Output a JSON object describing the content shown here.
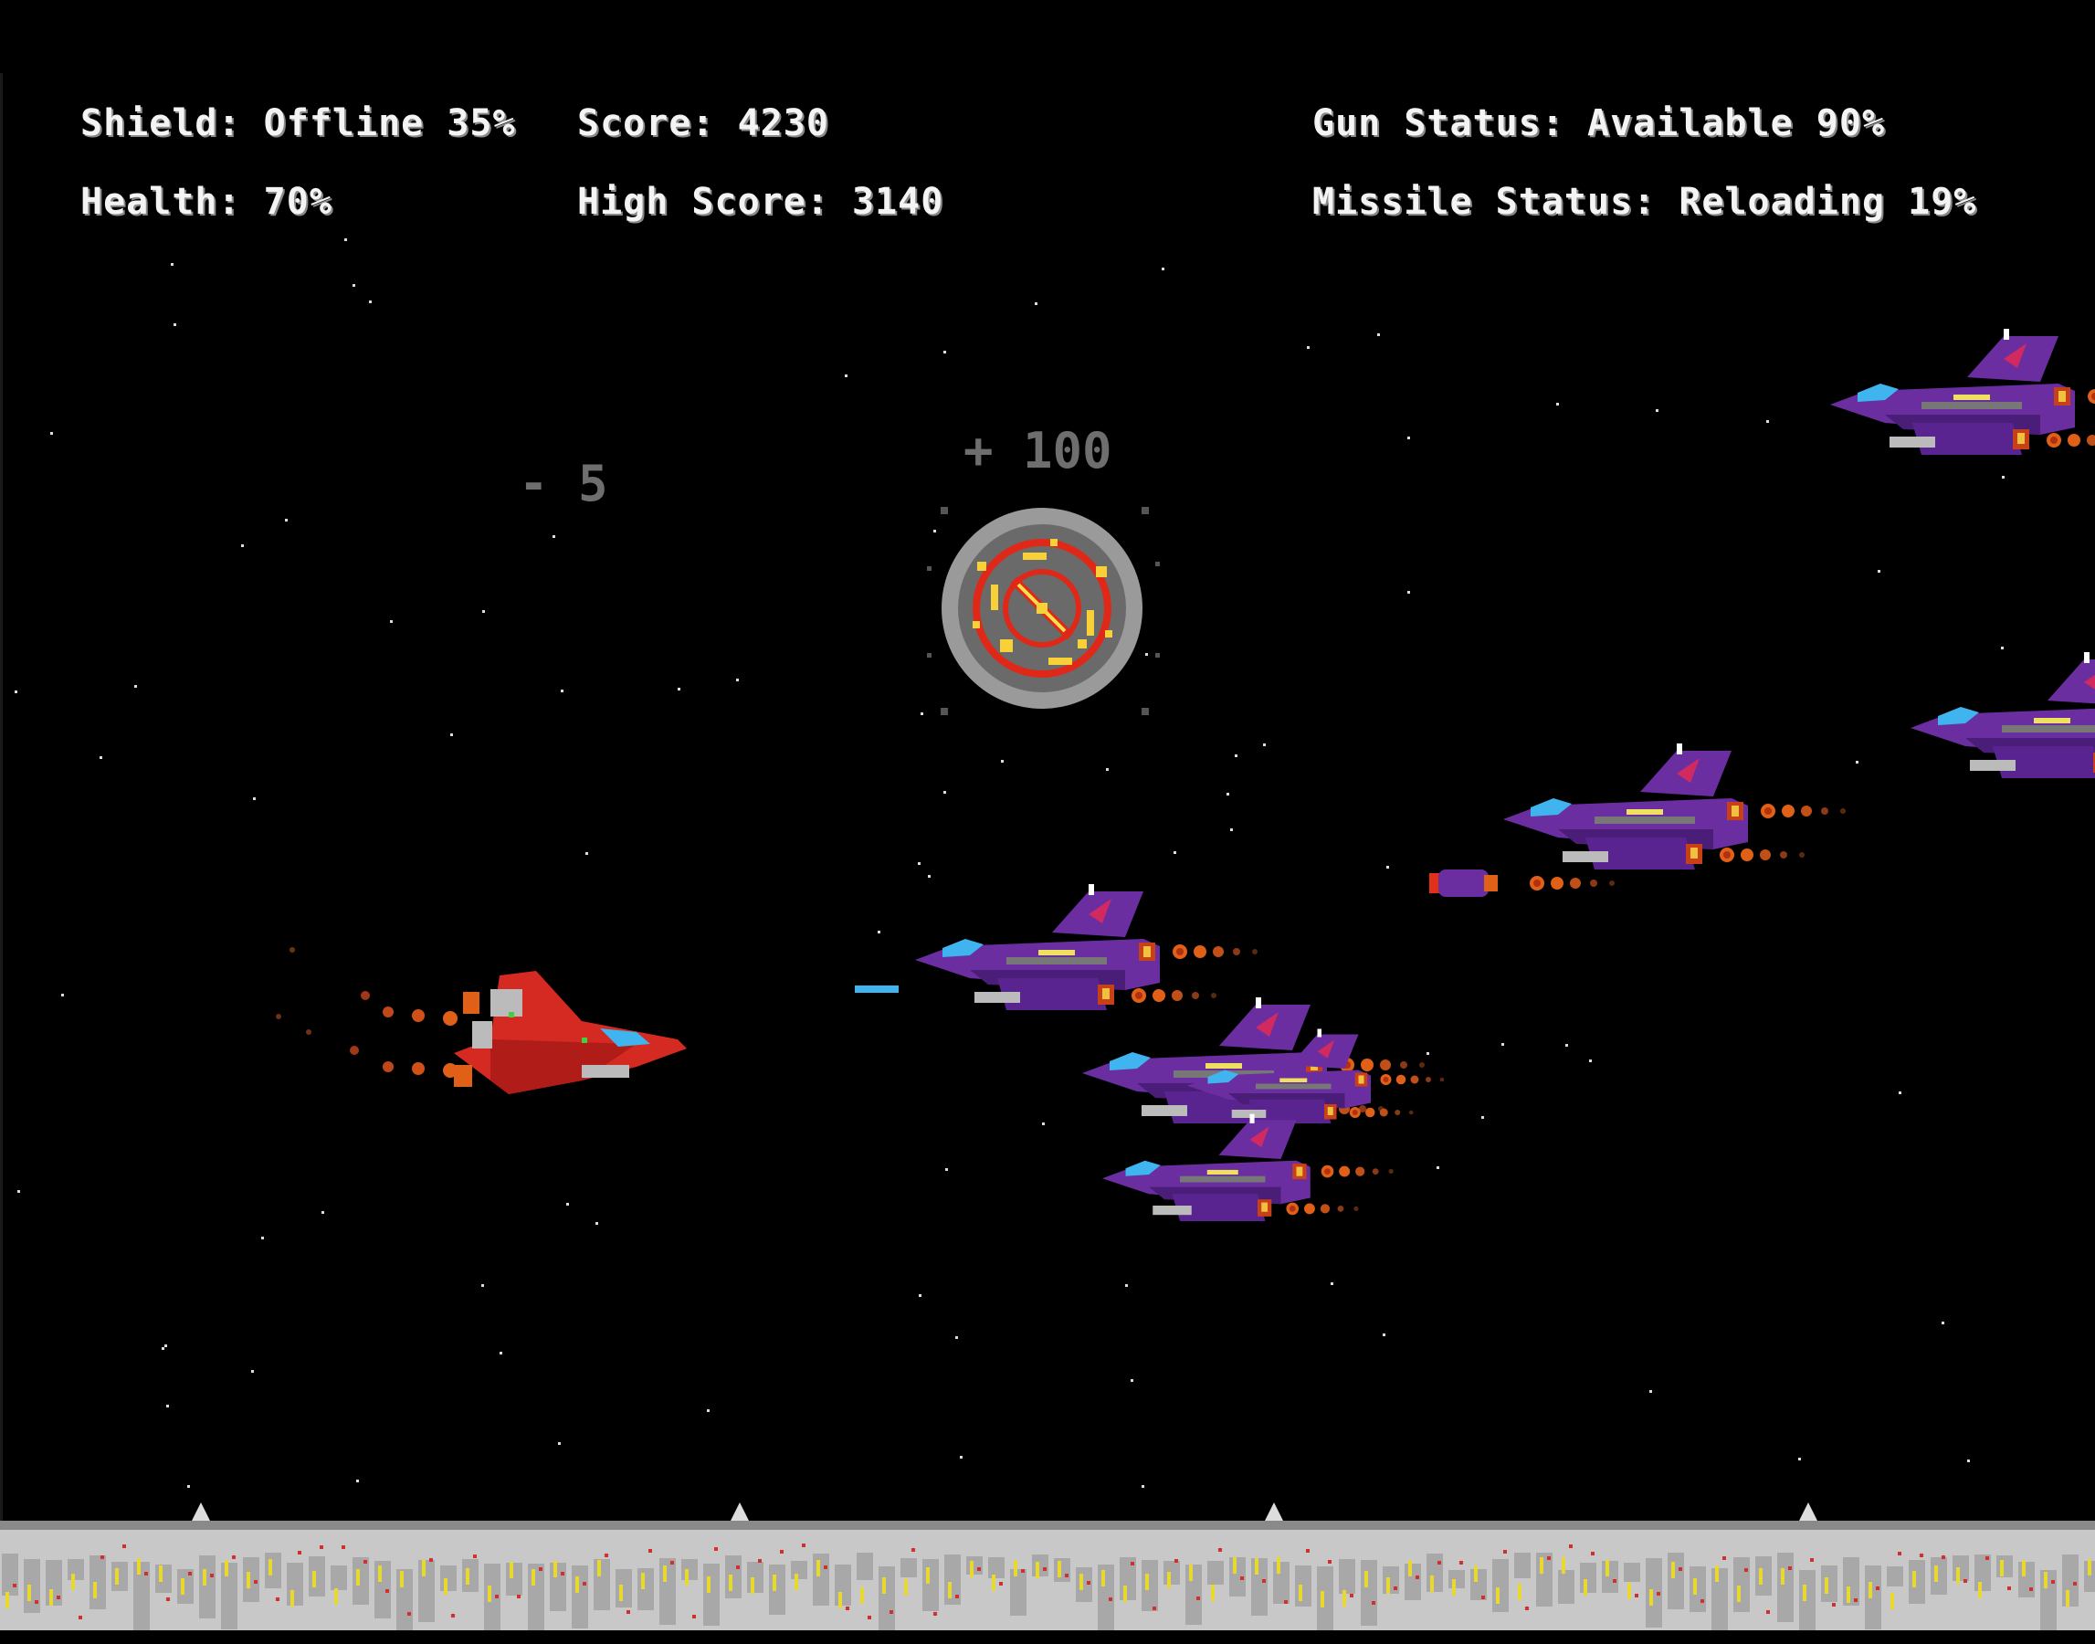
{
  "hud": {
    "shield": "Shield: Offline 35%",
    "health": "Health: 70%",
    "score": "Score: 4230",
    "high_score": "High Score: 3140",
    "gun_status": "Gun Status: Available 90%",
    "missile_status": "Missile Status: Reloading 19%"
  },
  "popups": {
    "points_gain": "+ 100",
    "damage": "- 5"
  },
  "values": {
    "shield_percent": 35,
    "shield_state": "Offline",
    "health_percent": 70,
    "score": 4230,
    "high_score": 3140,
    "gun_percent": 90,
    "gun_state": "Available",
    "missile_percent": 19,
    "missile_state": "Reloading"
  },
  "colors": {
    "background": "#000000",
    "hud_text": "#f4f4f4",
    "popup_text": "#6e6e6e",
    "player_ship": "#d42a22",
    "enemy_ship": "#6a2ea0",
    "cockpit": "#3fb4ee",
    "thruster": "#f07020",
    "ground": "#c8c8c8"
  },
  "entities": {
    "player": "red-fighter-ship",
    "enemies": "purple-fighter-ship",
    "explosion": "asteroid-explosion",
    "projectiles": [
      "blue-laser",
      "missile"
    ]
  }
}
